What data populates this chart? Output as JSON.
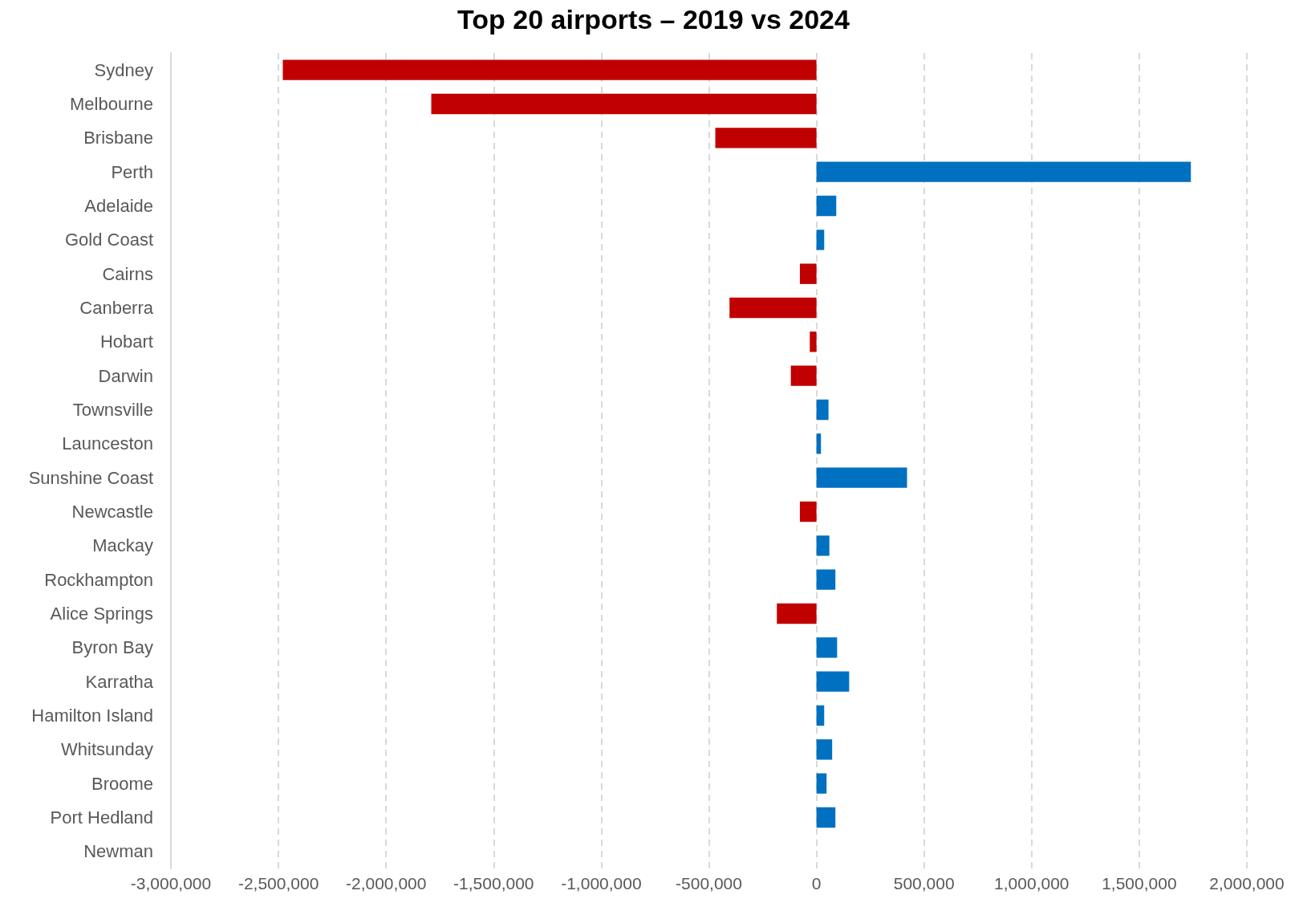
{
  "chart_data": {
    "type": "bar",
    "orientation": "horizontal",
    "title": "Top 20 airports – 2019 vs 2024",
    "categories": [
      "Sydney",
      "Melbourne",
      "Brisbane",
      "Perth",
      "Adelaide",
      "Gold Coast",
      "Cairns",
      "Canberra",
      "Hobart",
      "Darwin",
      "Townsville",
      "Launceston",
      "Sunshine Coast",
      "Newcastle",
      "Mackay",
      "Rockhampton",
      "Alice Springs",
      "Byron Bay",
      "Karratha",
      "Hamilton Island",
      "Whitsunday",
      "Broome",
      "Port Hedland",
      "Newman"
    ],
    "values": [
      -2480000,
      -1790000,
      -470000,
      1740000,
      92000,
      36000,
      -77000,
      -404000,
      -31000,
      -119000,
      56000,
      21000,
      421000,
      -77000,
      60000,
      88000,
      -184000,
      96000,
      152000,
      36000,
      73000,
      47000,
      88000,
      0
    ],
    "colors": [
      "#c00000",
      "#c00000",
      "#c00000",
      "#0070c0",
      "#0070c0",
      "#0070c0",
      "#c00000",
      "#c00000",
      "#c00000",
      "#c00000",
      "#0070c0",
      "#0070c0",
      "#0070c0",
      "#c00000",
      "#0070c0",
      "#0070c0",
      "#c00000",
      "#0070c0",
      "#0070c0",
      "#0070c0",
      "#0070c0",
      "#0070c0",
      "#0070c0",
      "#0070c0"
    ],
    "xlim": [
      -3000000,
      2000000
    ],
    "xticks": [
      {
        "value": -3000000,
        "label": "-3,000,000"
      },
      {
        "value": -2500000,
        "label": "-2,500,000"
      },
      {
        "value": -2000000,
        "label": "-2,000,000"
      },
      {
        "value": -1500000,
        "label": "-1,500,000"
      },
      {
        "value": -1000000,
        "label": "-1,000,000"
      },
      {
        "value": -500000,
        "label": "-500,000"
      },
      0,
      {
        "value": 500000,
        "label": "500,000"
      },
      {
        "value": 1000000,
        "label": "1,000,000"
      },
      {
        "value": 1500000,
        "label": "1,500,000"
      },
      {
        "value": 2000000,
        "label": "2,000,000"
      }
    ],
    "grid": "x"
  }
}
